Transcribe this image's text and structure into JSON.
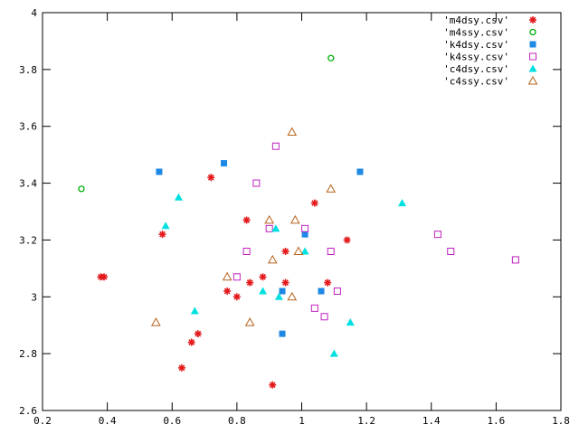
{
  "chart_data": {
    "type": "scatter",
    "title": "",
    "xlabel": "",
    "ylabel": "",
    "xlim": [
      0.2,
      1.8
    ],
    "ylim": [
      2.6,
      4.0
    ],
    "xticks": [
      "0.2",
      "0.4",
      "0.6",
      "0.8",
      "1",
      "1.2",
      "1.4",
      "1.6",
      "1.8"
    ],
    "yticks": [
      "2.6",
      "2.8",
      "3",
      "3.2",
      "3.4",
      "3.6",
      "3.8",
      "4"
    ],
    "grid": false,
    "legend_position": "top-right",
    "series": [
      {
        "name": "'m4dsy.csv'",
        "marker": "star",
        "color": "#e41a1c",
        "x": [
          0.38,
          0.39,
          0.57,
          0.63,
          0.66,
          0.68,
          0.72,
          0.77,
          0.8,
          0.83,
          0.84,
          0.88,
          0.91,
          0.95,
          0.95,
          1.04,
          1.08,
          1.14
        ],
        "y": [
          3.07,
          3.07,
          3.22,
          2.75,
          2.84,
          2.87,
          3.42,
          3.02,
          3.0,
          3.27,
          3.05,
          3.07,
          2.69,
          3.16,
          3.05,
          3.33,
          3.05,
          3.2
        ]
      },
      {
        "name": "'m4ssy.csv'",
        "marker": "open-circle",
        "color": "#00b000",
        "x": [
          0.32,
          1.09
        ],
        "y": [
          3.38,
          3.84
        ]
      },
      {
        "name": "'k4dsy.csv'",
        "marker": "filled-square",
        "color": "#1e88e5",
        "x": [
          0.56,
          0.76,
          0.94,
          0.94,
          1.01,
          1.06,
          1.18
        ],
        "y": [
          3.44,
          3.47,
          2.87,
          3.02,
          3.22,
          3.02,
          3.44
        ]
      },
      {
        "name": "'k4ssy.csv'",
        "marker": "open-square",
        "color": "#c020c0",
        "x": [
          0.8,
          0.83,
          0.86,
          0.9,
          0.92,
          1.01,
          1.04,
          1.07,
          1.09,
          1.11,
          1.42,
          1.46,
          1.66
        ],
        "y": [
          3.07,
          3.16,
          3.4,
          3.24,
          3.53,
          3.24,
          2.96,
          2.93,
          3.16,
          3.02,
          3.22,
          3.16,
          3.13
        ]
      },
      {
        "name": "'c4dsy.csv'",
        "marker": "filled-triangle",
        "color": "#00e0e0",
        "x": [
          0.58,
          0.62,
          0.67,
          0.88,
          0.92,
          0.93,
          1.01,
          1.1,
          1.15,
          1.31
        ],
        "y": [
          3.25,
          3.35,
          2.95,
          3.02,
          3.24,
          3.0,
          3.16,
          2.8,
          2.91,
          3.33
        ]
      },
      {
        "name": "'c4ssy.csv'",
        "marker": "open-triangle",
        "color": "#b8621b",
        "x": [
          0.55,
          0.77,
          0.84,
          0.9,
          0.91,
          0.97,
          0.97,
          0.98,
          0.99,
          1.09
        ],
        "y": [
          2.91,
          3.07,
          2.91,
          3.27,
          3.13,
          3.58,
          3.0,
          3.27,
          3.16,
          3.38
        ]
      }
    ]
  }
}
